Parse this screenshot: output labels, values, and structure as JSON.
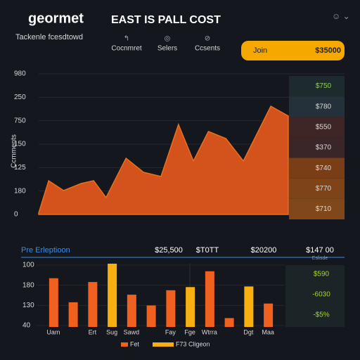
{
  "header": {
    "brand": "geormet",
    "title": "EAST IS PALL COST",
    "subtitle": "Tackenle fcesdtowd",
    "nav": [
      "Cocnmret",
      "Selers",
      "Ccsents"
    ],
    "button": "Join",
    "button_value": "$35000"
  },
  "chart_data": [
    {
      "type": "area",
      "y_label": "Ccmments",
      "y_labels": [
        "980",
        "250",
        "750",
        "150",
        "125",
        "180",
        "0"
      ],
      "x": [
        0,
        4,
        10,
        17,
        22,
        27,
        35,
        42,
        49,
        56,
        62,
        68,
        75,
        82,
        93,
        100
      ],
      "xlim": [
        0,
        100
      ],
      "ylim": [
        0,
        100
      ],
      "series": [
        {
          "color": "#d4521c",
          "values": [
            1,
            24,
            17,
            22,
            24,
            12,
            40,
            30,
            27,
            64,
            38,
            59,
            54,
            38,
            77,
            70
          ]
        }
      ],
      "side_labels": [
        "$750",
        "$780",
        "$550",
        "$370",
        "$740",
        "$770",
        "$710"
      ]
    },
    {
      "type": "bar",
      "title": "Pre Erleptioon",
      "top_labels": [
        "$25,500",
        "$T0TT",
        "$20200",
        "$147 00"
      ],
      "top_note": "Eslisde",
      "y_labels": [
        "100",
        "180",
        "130",
        "40"
      ],
      "ylim": [
        0,
        100
      ],
      "categories": [
        "Uam",
        null,
        "Ert",
        "Sug",
        "Sawd",
        null,
        "Fay",
        "Fge",
        "Wtrra",
        null,
        "Dgt",
        "Maa"
      ],
      "series": [
        {
          "name": "Fet",
          "color": "#f0601e",
          "values": [
            77,
            39,
            71,
            null,
            51,
            34,
            58,
            null,
            88,
            14,
            null,
            37
          ]
        },
        {
          "name": "F73 Cligeon",
          "color": "#f8b010",
          "values": [
            null,
            null,
            null,
            100,
            null,
            null,
            null,
            63,
            null,
            null,
            64,
            null
          ]
        }
      ],
      "side_labels": [
        "$590",
        "-6030",
        "-$5%"
      ]
    }
  ]
}
